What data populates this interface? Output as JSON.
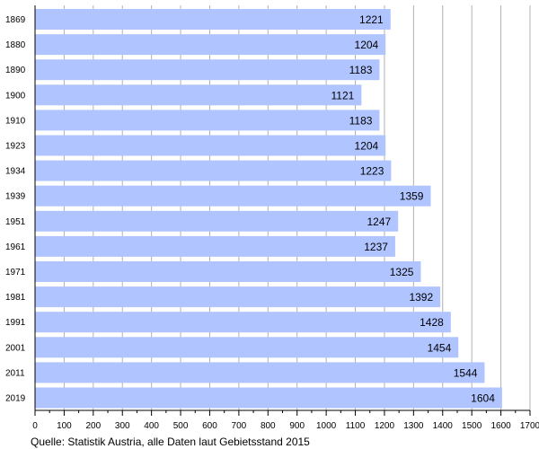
{
  "chart_data": {
    "type": "bar",
    "orientation": "horizontal",
    "categories": [
      "1869",
      "1880",
      "1890",
      "1900",
      "1910",
      "1923",
      "1934",
      "1939",
      "1951",
      "1961",
      "1971",
      "1981",
      "1991",
      "2001",
      "2011",
      "2019"
    ],
    "values": [
      1221,
      1204,
      1183,
      1121,
      1183,
      1204,
      1223,
      1359,
      1247,
      1237,
      1325,
      1392,
      1428,
      1454,
      1544,
      1604
    ],
    "value_labels": [
      "1221",
      "1204",
      "1183",
      "1121",
      "1183",
      "1204",
      "1223",
      "1359",
      "1247",
      "1237",
      "1325",
      "1392",
      "1428",
      "1454",
      "1544",
      "1604"
    ],
    "xlim": [
      0,
      1700
    ],
    "x_ticks": [
      0,
      100,
      200,
      300,
      400,
      500,
      600,
      700,
      800,
      900,
      1000,
      1100,
      1200,
      1300,
      1400,
      1500,
      1600,
      1700
    ],
    "x_tick_labels": [
      "0",
      "100",
      "200",
      "300",
      "400",
      "500",
      "600",
      "700",
      "800",
      "900",
      "1000",
      "1100",
      "1200",
      "1300",
      "1400",
      "1500",
      "1600",
      "1700"
    ],
    "grid": "vertical",
    "bar_color": "#b0c4ff",
    "title": "",
    "xlabel": "",
    "ylabel": ""
  },
  "source_note": "Quelle: Statistik Austria, alle Daten laut Gebietsstand 2015"
}
